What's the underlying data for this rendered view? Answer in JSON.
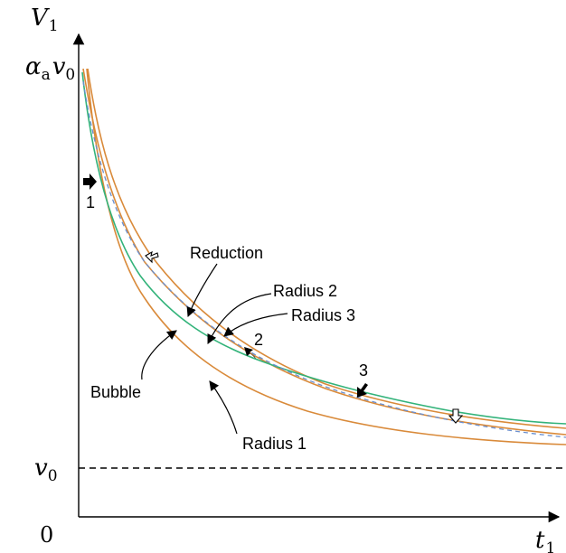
{
  "axes": {
    "y_axis_label": "V",
    "y_axis_label_sub": "1",
    "x_axis_label": "t",
    "x_axis_label_sub": "1",
    "origin_label": "0",
    "y_level_high_label_alpha": "α",
    "y_level_high_label_alpha_sub": "a",
    "y_level_high_label_v": "v",
    "y_level_high_label_v_sub": "0",
    "y_level_low_label": "v",
    "y_level_low_label_sub": "0"
  },
  "annotations": {
    "reduction": "Reduction",
    "radius_2": "Radius 2",
    "radius_3": "Radius 3",
    "bubble": "Bubble",
    "radius_1": "Radius 1"
  },
  "markers": {
    "m1": "1",
    "m2": "2",
    "m3": "3"
  },
  "colors": {
    "orange_curves": "#d98a3a",
    "green_curve": "#33b37a",
    "dashed_curve": "#6a8fcf"
  }
}
